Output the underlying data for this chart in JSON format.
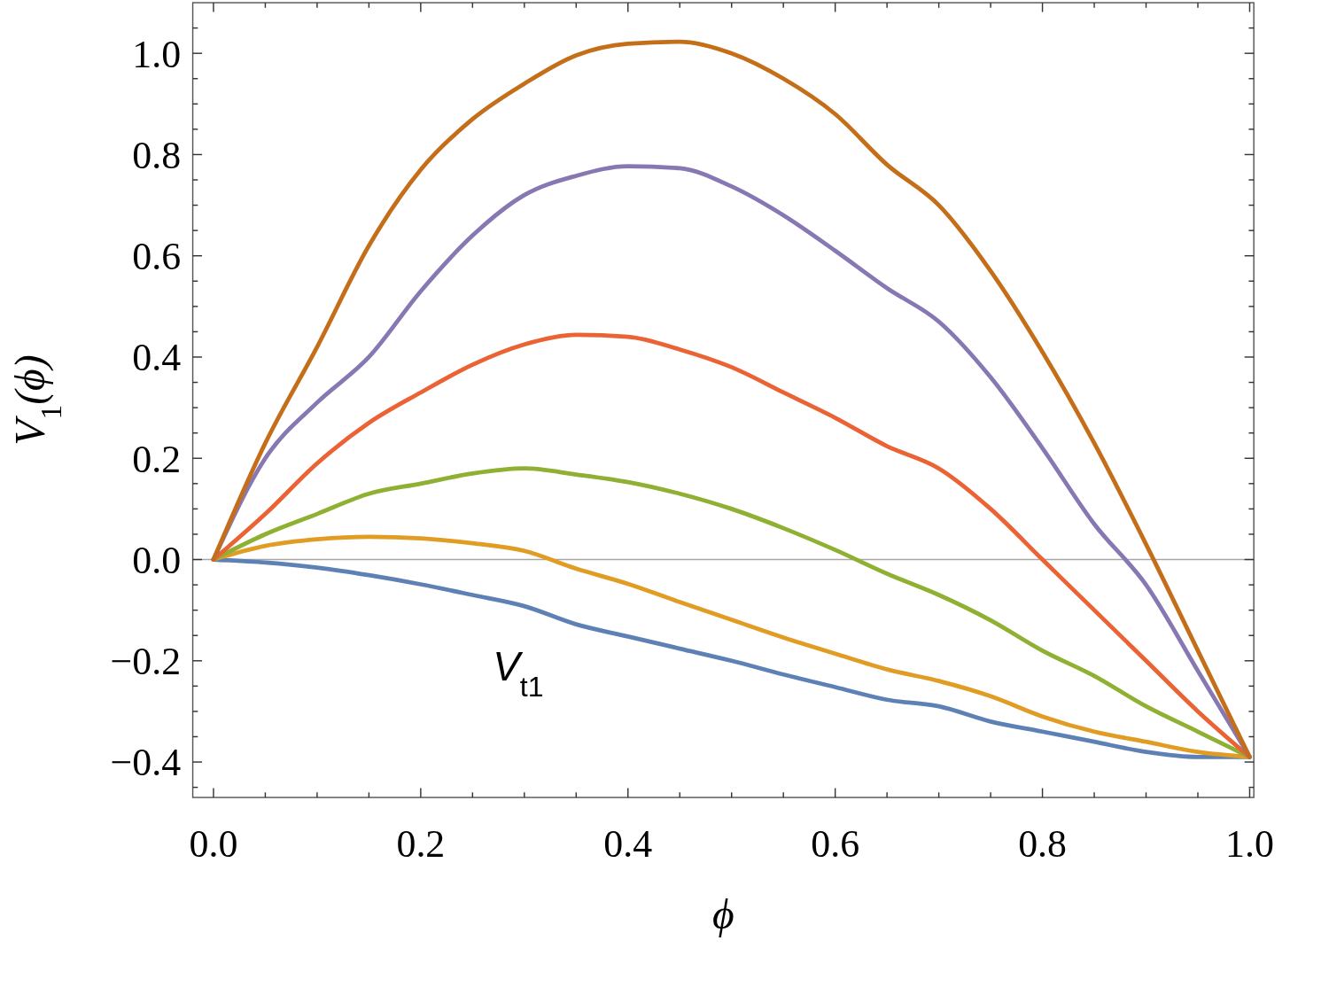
{
  "chart_data": {
    "type": "line",
    "xlabel": "ϕ",
    "ylabel": "V$_{1}$(ϕ)",
    "x": [
      0,
      0.05,
      0.1,
      0.15,
      0.2,
      0.25,
      0.3,
      0.35,
      0.4,
      0.45,
      0.5,
      0.55,
      0.6,
      0.65,
      0.7,
      0.75,
      0.8,
      0.85,
      0.9,
      0.95,
      1
    ],
    "series": [
      {
        "color": "#5e81b5",
        "values": [
          0,
          -0.006,
          -0.016,
          -0.031,
          -0.049,
          -0.07,
          -0.092,
          -0.128,
          -0.152,
          -0.176,
          -0.2,
          -0.227,
          -0.252,
          -0.277,
          -0.29,
          -0.32,
          -0.34,
          -0.36,
          -0.38,
          -0.39,
          -0.39
        ]
      },
      {
        "color": "#e19c24",
        "values": [
          0,
          0.027,
          0.04,
          0.045,
          0.042,
          0.032,
          0.017,
          -0.018,
          -0.048,
          -0.084,
          -0.119,
          -0.154,
          -0.186,
          -0.217,
          -0.24,
          -0.27,
          -0.31,
          -0.34,
          -0.36,
          -0.38,
          -0.39
        ]
      },
      {
        "color": "#8fb032",
        "values": [
          0,
          0.05,
          0.09,
          0.13,
          0.15,
          0.17,
          0.18,
          0.168,
          0.153,
          0.13,
          0.1,
          0.062,
          0.019,
          -0.028,
          -0.07,
          -0.12,
          -0.18,
          -0.23,
          -0.29,
          -0.34,
          -0.39
        ]
      },
      {
        "color": "#eb6235",
        "values": [
          0,
          0.09,
          0.19,
          0.27,
          0.33,
          0.385,
          0.425,
          0.444,
          0.44,
          0.415,
          0.38,
          0.33,
          0.28,
          0.224,
          0.18,
          0.1,
          0,
          -0.1,
          -0.2,
          -0.3,
          -0.39
        ]
      },
      {
        "color": "#8778b3",
        "values": [
          0,
          0.2,
          0.31,
          0.4,
          0.53,
          0.64,
          0.72,
          0.758,
          0.777,
          0.773,
          0.737,
          0.68,
          0.61,
          0.536,
          0.47,
          0.36,
          0.22,
          0.07,
          -0.05,
          -0.22,
          -0.39
        ]
      },
      {
        "color": "#c56e1a",
        "values": [
          0,
          0.23,
          0.42,
          0.62,
          0.77,
          0.87,
          0.94,
          0.996,
          1.019,
          1.023,
          1.0,
          0.95,
          0.88,
          0.78,
          0.7,
          0.57,
          0.41,
          0.23,
          0.03,
          -0.18,
          -0.39
        ]
      }
    ],
    "xlim": [
      -0.02,
      1.004
    ],
    "ylim": [
      -0.47,
      1.1
    ],
    "xticks": [
      {
        "value": 0,
        "label": "0.0"
      },
      {
        "value": 0.05,
        "label": null
      },
      {
        "value": 0.1,
        "label": null
      },
      {
        "value": 0.15,
        "label": null
      },
      {
        "value": 0.2,
        "label": "0.2"
      },
      {
        "value": 0.25,
        "label": null
      },
      {
        "value": 0.3,
        "label": null
      },
      {
        "value": 0.35,
        "label": null
      },
      {
        "value": 0.4,
        "label": "0.4"
      },
      {
        "value": 0.45,
        "label": null
      },
      {
        "value": 0.5,
        "label": null
      },
      {
        "value": 0.55,
        "label": null
      },
      {
        "value": 0.6,
        "label": "0.6"
      },
      {
        "value": 0.65,
        "label": null
      },
      {
        "value": 0.7,
        "label": null
      },
      {
        "value": 0.75,
        "label": null
      },
      {
        "value": 0.8,
        "label": "0.8"
      },
      {
        "value": 0.85,
        "label": null
      },
      {
        "value": 0.9,
        "label": null
      },
      {
        "value": 0.95,
        "label": null
      },
      {
        "value": 1,
        "label": "1.0"
      }
    ],
    "yticks": [
      {
        "value": -0.45,
        "label": null
      },
      {
        "value": -0.4,
        "label": "−0.4"
      },
      {
        "value": -0.35,
        "label": null
      },
      {
        "value": -0.3,
        "label": null
      },
      {
        "value": -0.25,
        "label": null
      },
      {
        "value": -0.2,
        "label": "−0.2"
      },
      {
        "value": -0.15,
        "label": null
      },
      {
        "value": -0.1,
        "label": null
      },
      {
        "value": -0.05,
        "label": null
      },
      {
        "value": 0,
        "label": "0.0"
      },
      {
        "value": 0.05,
        "label": null
      },
      {
        "value": 0.1,
        "label": null
      },
      {
        "value": 0.15,
        "label": null
      },
      {
        "value": 0.2,
        "label": "0.2"
      },
      {
        "value": 0.25,
        "label": null
      },
      {
        "value": 0.3,
        "label": null
      },
      {
        "value": 0.35,
        "label": null
      },
      {
        "value": 0.4,
        "label": "0.4"
      },
      {
        "value": 0.45,
        "label": null
      },
      {
        "value": 0.5,
        "label": null
      },
      {
        "value": 0.55,
        "label": null
      },
      {
        "value": 0.6,
        "label": "0.6"
      },
      {
        "value": 0.65,
        "label": null
      },
      {
        "value": 0.7,
        "label": null
      },
      {
        "value": 0.75,
        "label": null
      },
      {
        "value": 0.8,
        "label": "0.8"
      },
      {
        "value": 0.85,
        "label": null
      },
      {
        "value": 0.9,
        "label": null
      },
      {
        "value": 0.95,
        "label": null
      },
      {
        "value": 1,
        "label": "1.0"
      },
      {
        "value": 1.05,
        "label": null
      }
    ],
    "ref_lines": [
      {
        "axis": "y",
        "value": 0,
        "color": "#a6a6a6"
      }
    ],
    "annotations": [
      "V$_{t1}$"
    ]
  }
}
